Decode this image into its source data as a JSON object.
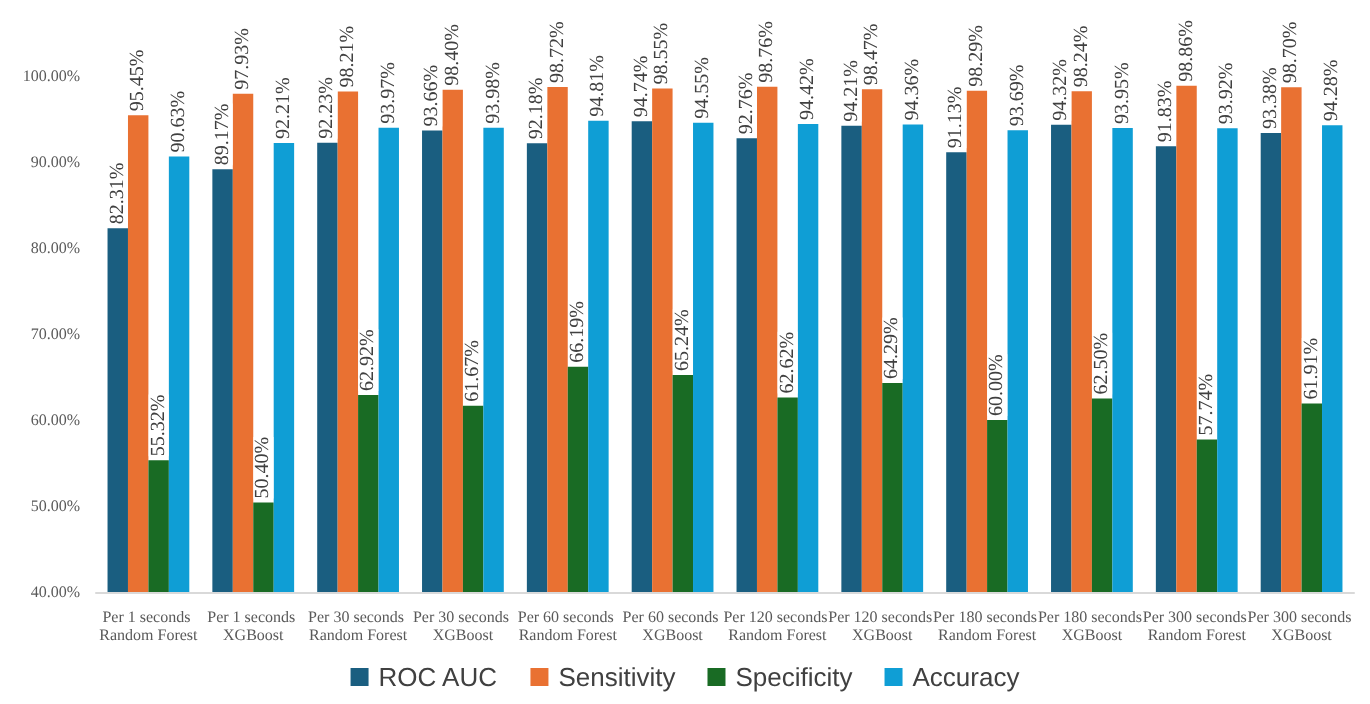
{
  "chart_data": {
    "type": "bar",
    "categories": [
      "Per 1 seconds Random Forest",
      "Per 1 seconds XGBoost",
      "Per 30 seconds Random Forest",
      "Per 30 seconds XGBoost",
      "Per 60 seconds Random Forest",
      "Per 60 seconds XGBoost",
      "Per 120 seconds Random Forest",
      "Per 120 seconds XGBoost",
      "Per 180 seconds Random Forest",
      "Per 180 seconds XGBoost",
      "Per 300 seconds Random Forest",
      "Per 300 seconds XGBoost"
    ],
    "series": [
      {
        "name": "ROC AUC",
        "color": "#1a5e80",
        "values": [
          82.31,
          89.17,
          92.23,
          93.66,
          92.18,
          94.74,
          92.76,
          94.21,
          91.13,
          94.32,
          91.83,
          93.38
        ],
        "value_labels": [
          "82.31%",
          "89.17%",
          "92.23%",
          "93.66%",
          "92.18%",
          "94.74%",
          "92.76%",
          "94.21%",
          "91.13%",
          "94.32%",
          "91.83%",
          "93.38%"
        ]
      },
      {
        "name": "Sensitivity",
        "color": "#e97132",
        "values": [
          95.45,
          97.93,
          98.21,
          98.4,
          98.72,
          98.55,
          98.76,
          98.47,
          98.29,
          98.24,
          98.86,
          98.7
        ],
        "value_labels": [
          "95.45%",
          "97.93%",
          "98.21%",
          "98.40%",
          "98.72%",
          "98.55%",
          "98.76%",
          "98.47%",
          "98.29%",
          "98.24%",
          "98.86%",
          "98.70%"
        ]
      },
      {
        "name": "Specificity",
        "color": "#196b24",
        "values": [
          55.32,
          50.4,
          62.92,
          61.67,
          66.19,
          65.24,
          62.62,
          64.29,
          60.0,
          62.5,
          57.74,
          61.91
        ],
        "value_labels": [
          "55.32%",
          "50.40%",
          "62.92%",
          "61.67%",
          "66.19%",
          "65.24%",
          "62.62%",
          "64.29%",
          "60.00%",
          "62.50%",
          "57.74%",
          "61.91%"
        ]
      },
      {
        "name": "Accuracy",
        "color": "#0f9ed5",
        "values": [
          90.63,
          92.21,
          93.97,
          93.98,
          94.81,
          94.55,
          94.42,
          94.36,
          93.69,
          93.95,
          93.92,
          94.28
        ],
        "value_labels": [
          "90.63%",
          "92.21%",
          "93.97%",
          "93.98%",
          "94.81%",
          "94.55%",
          "94.42%",
          "94.36%",
          "93.69%",
          "93.95%",
          "93.92%",
          "94.28%"
        ]
      }
    ],
    "ylim": [
      40,
      100
    ],
    "yticks": [
      {
        "value": 40,
        "label": "40.00%"
      },
      {
        "value": 50,
        "label": "50.00%"
      },
      {
        "value": 60,
        "label": "60.00%"
      },
      {
        "value": 70,
        "label": "70.00%"
      },
      {
        "value": 80,
        "label": "80.00%"
      },
      {
        "value": 90,
        "label": "90.00%"
      },
      {
        "value": 100,
        "label": "100.00%"
      }
    ],
    "legend": "bottom",
    "grid": false
  }
}
